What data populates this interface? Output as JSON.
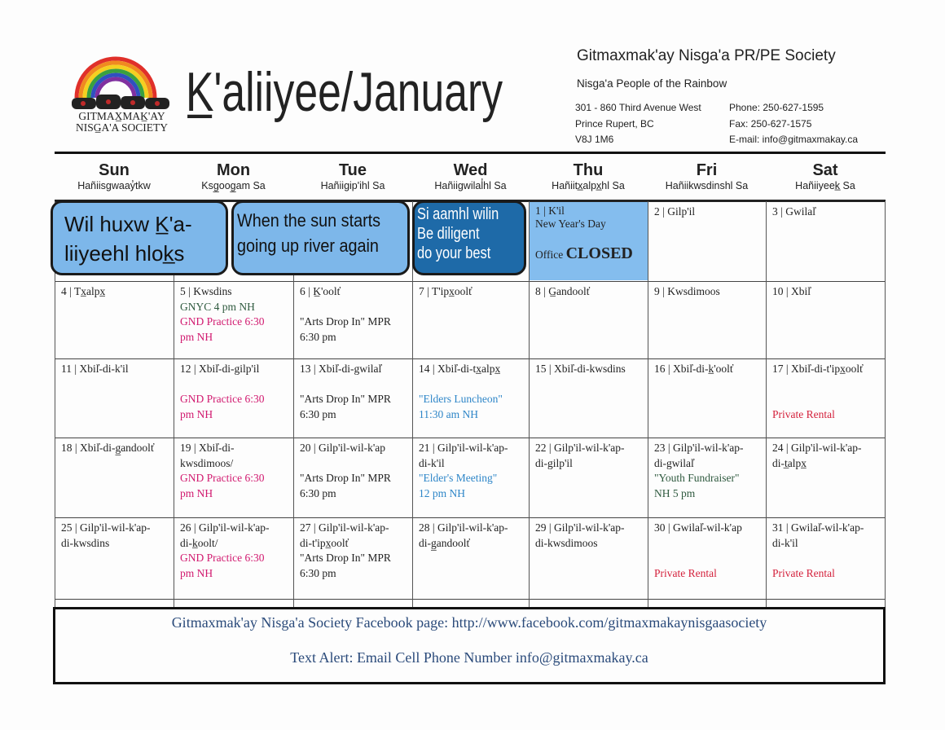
{
  "header": {
    "logo": {
      "arc_text": "Nisga'a People of the Rainbow",
      "name_line1": "GITMAX̲MAK̲'AY",
      "name_line2": "NISG̲A'A SOCIETY"
    },
    "title": "K̲'aliiyee/January",
    "org_name": "Gitmaxmak'ay Nisga'a PR/PE Society",
    "org_sub": "Nisga'a People of the Rainbow",
    "address": [
      "301 - 860 Third Avenue West",
      "Prince Rupert, BC",
      "V8J 1M6"
    ],
    "contact": [
      "Phone: 250-627-1595",
      "Fax: 250-627-1575",
      "E-mail: info@gitmaxmakay.ca"
    ]
  },
  "days": [
    {
      "en": "Sun",
      "ng": "Hañiisgwaay̓tkw"
    },
    {
      "en": "Mon",
      "ng": "Ksg̲oog̲am Sa"
    },
    {
      "en": "Tue",
      "ng": "Hañiigip'ihl Sa"
    },
    {
      "en": "Wed",
      "ng": "Hañiigwilal̓hl Sa"
    },
    {
      "en": "Thu",
      "ng": "Hañiitx̲alpx̲hl Sa"
    },
    {
      "en": "Fri",
      "ng": "Hañiikwsdinshl Sa"
    },
    {
      "en": "Sat",
      "ng": "Hañiiyeek̲ Sa"
    }
  ],
  "banners": [
    {
      "text": "Wil huxw K̲'a-\nliiyeehl hlok̲s",
      "color": "#7db7ea"
    },
    {
      "text": "When the sun starts\ngoing up river again",
      "color": "#7db7ea"
    },
    {
      "text": "Si aamhl wilin\nBe diligent\ndo your best",
      "color": "#1e6aa8"
    }
  ],
  "first_day": {
    "label": "1 | K'il",
    "event": "New Year's Day",
    "office": "Office",
    "closed": "CLOSED",
    "color": "#84bdee"
  },
  "colors": {
    "black": "#222222",
    "green": "#2f5a3f",
    "magenta": "#d1196f",
    "blue": "#2e86c8",
    "red": "#d4213c"
  },
  "cells": [
    [
      null,
      null,
      null,
      null,
      null,
      {
        "lines": [
          {
            "t": "2 | Gilp'il",
            "c": "black"
          }
        ]
      },
      {
        "lines": [
          {
            "t": "3 | Gwilal̓",
            "c": "black"
          }
        ]
      }
    ],
    [
      {
        "lines": [
          {
            "t": "4 | Tx̲alpx̲",
            "c": "black"
          }
        ]
      },
      {
        "lines": [
          {
            "t": "5 | Kwsdins",
            "c": "black"
          },
          {
            "t": "GNYC 4 pm NH",
            "c": "green"
          },
          {
            "t": "GND Practice  6:30\npm NH",
            "c": "magenta"
          }
        ]
      },
      {
        "lines": [
          {
            "t": "6 | K̲'oolt̓",
            "c": "black"
          },
          {
            "t": "",
            "c": "gap"
          },
          {
            "t": "\"Arts Drop In\" MPR\n6:30 pm",
            "c": "black"
          }
        ]
      },
      {
        "lines": [
          {
            "t": "7 | T'ipx̲oolt̓",
            "c": "black"
          }
        ]
      },
      {
        "lines": [
          {
            "t": "8 | G̲andoolt̓",
            "c": "black"
          }
        ]
      },
      {
        "lines": [
          {
            "t": "9 | Kwsdimoos",
            "c": "black"
          }
        ]
      },
      {
        "lines": [
          {
            "t": "10 | Xbil̓",
            "c": "black"
          }
        ]
      }
    ],
    [
      {
        "lines": [
          {
            "t": "11 | Xbil̓-di-k'il",
            "c": "black"
          }
        ]
      },
      {
        "lines": [
          {
            "t": "12 | Xbil̓-di-gilp'il",
            "c": "black"
          },
          {
            "t": "",
            "c": "gap"
          },
          {
            "t": "GND Practice  6:30\npm NH",
            "c": "magenta"
          }
        ]
      },
      {
        "lines": [
          {
            "t": "13 | Xbil̓-di-gwilal̓",
            "c": "black"
          },
          {
            "t": "",
            "c": "gap"
          },
          {
            "t": "\"Arts Drop In\" MPR\n6:30 pm",
            "c": "black"
          }
        ]
      },
      {
        "lines": [
          {
            "t": "14 | Xbil̓-di-tx̲alpx̲",
            "c": "black"
          },
          {
            "t": "",
            "c": "gap"
          },
          {
            "t": "\"Elders Luncheon\"\n11:30 am NH",
            "c": "blue"
          }
        ]
      },
      {
        "lines": [
          {
            "t": "15 | Xbil̓-di-kwsdins",
            "c": "black"
          }
        ]
      },
      {
        "lines": [
          {
            "t": "16 | Xbil̓-di-k̲'oolt̓",
            "c": "black"
          }
        ]
      },
      {
        "lines": [
          {
            "t": "17 | Xbil̓-di-t'ipx̲oolt̓",
            "c": "black"
          },
          {
            "t": "",
            "c": "gap"
          },
          {
            "t": "",
            "c": "gap"
          },
          {
            "t": "Private Rental",
            "c": "red"
          }
        ]
      }
    ],
    [
      {
        "lines": [
          {
            "t": "18 | Xbil̓-di-g̲andoolt̓",
            "c": "black"
          }
        ]
      },
      {
        "lines": [
          {
            "t": "19 | Xbil̓-di-\nkwsdimoos/",
            "c": "black"
          },
          {
            "t": "GND Practice  6:30\npm NH",
            "c": "magenta"
          }
        ]
      },
      {
        "lines": [
          {
            "t": "20 | Gilp'il-wil-k'ap",
            "c": "black"
          },
          {
            "t": "",
            "c": "gap"
          },
          {
            "t": "\"Arts Drop In\" MPR\n6:30 pm",
            "c": "black"
          }
        ]
      },
      {
        "lines": [
          {
            "t": "21 | Gilp'il-wil-k'ap-\ndi-k'il",
            "c": "black"
          },
          {
            "t": "\"Elder's Meeting\"\n12 pm NH",
            "c": "blue"
          }
        ]
      },
      {
        "lines": [
          {
            "t": "22 | Gilp'il-wil-k'ap-\ndi-gilp'il",
            "c": "black"
          }
        ]
      },
      {
        "lines": [
          {
            "t": "23 | Gilp'il-wil-k'ap-\ndi-gwilal̓",
            "c": "black"
          },
          {
            "t": "\"Youth Fundraiser\"\nNH 5 pm",
            "c": "green"
          }
        ]
      },
      {
        "lines": [
          {
            "t": "24 | Gilp'il-wil-k'ap-\ndi-t̲alpx̲",
            "c": "black"
          }
        ]
      }
    ],
    [
      {
        "lines": [
          {
            "t": "25 | Gilp'il-wil-k'ap-\ndi-kwsdins",
            "c": "black"
          }
        ]
      },
      {
        "lines": [
          {
            "t": "26 | Gilp'il-wil-k'ap-\ndi-k̲oolt/",
            "c": "black"
          },
          {
            "t": "GND Practice  6:30\npm NH",
            "c": "magenta"
          }
        ]
      },
      {
        "lines": [
          {
            "t": "27 | Gilp'il-wil-k'ap-\ndi-t'ipx̲oolt̓",
            "c": "black"
          },
          {
            "t": "\"Arts Drop In\" MPR\n6:30 pm",
            "c": "black"
          }
        ]
      },
      {
        "lines": [
          {
            "t": "28 | Gilp'il-wil-k'ap-\ndi-g̲andoolt̓",
            "c": "black"
          }
        ]
      },
      {
        "lines": [
          {
            "t": "29 | Gilp'il-wil-k'ap-\ndi-kwsdimoos",
            "c": "black"
          }
        ]
      },
      {
        "lines": [
          {
            "t": "30 | Gwilal̓-wil-k'ap",
            "c": "black"
          },
          {
            "t": "",
            "c": "gap"
          },
          {
            "t": "",
            "c": "gap"
          },
          {
            "t": "Private Rental",
            "c": "red"
          }
        ]
      },
      {
        "lines": [
          {
            "t": "31 | Gwilal̓-wil-k'ap-\ndi-k'il",
            "c": "black"
          },
          {
            "t": "",
            "c": "gap"
          },
          {
            "t": "Private Rental",
            "c": "red"
          }
        ]
      }
    ]
  ],
  "footer": {
    "facebook": "Gitmaxmak'ay Nisga'a Society Facebook page: http://www.facebook.com/gitmaxmakaynisgaasociety",
    "text_alert": "Text Alert: Email Cell Phone Number info@gitmaxmakay.ca"
  }
}
